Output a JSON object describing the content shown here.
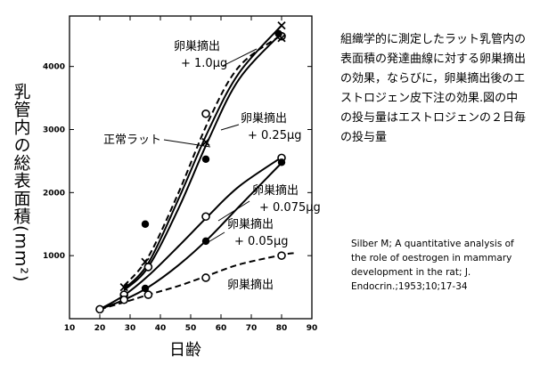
{
  "description": "組織学的に測定したラット乳管内の表面積の発達曲線に対する卵巣摘出の効果，ならびに，卵巣摘出後のエストロジェン皮下注の効果.図の中の投与量はエストロジェンの２日毎の投与量",
  "citation": "Silber M; A quantitative analysis of the role of oestrogen in mammary development in the rat; J. Endocrin.;1953;10;17-34",
  "chart_data": {
    "type": "line",
    "xlabel": "日齢",
    "ylabel": "乳管内の総表面積(mm²)",
    "xlim": [
      10,
      90
    ],
    "ylim": [
      0,
      4800
    ],
    "xticks": [
      10,
      20,
      30,
      40,
      50,
      60,
      70,
      80,
      90
    ],
    "yticks": [
      1000,
      2000,
      3000,
      4000
    ],
    "series": [
      {
        "name": "正常ラット",
        "label_lines": [
          "正常ラット"
        ],
        "style": "solid",
        "points": [
          {
            "x": 28,
            "y": 500,
            "m": "x"
          },
          {
            "x": 35,
            "y": 900,
            "m": "x"
          },
          {
            "x": 55,
            "y": 2800,
            "m": "x"
          },
          {
            "x": 80,
            "y": 4650,
            "m": "x"
          }
        ],
        "curve": [
          {
            "x": 28,
            "y": 470
          },
          {
            "x": 36,
            "y": 880
          },
          {
            "x": 46,
            "y": 1900
          },
          {
            "x": 56,
            "y": 3000
          },
          {
            "x": 66,
            "y": 3900
          },
          {
            "x": 80,
            "y": 4650
          }
        ]
      },
      {
        "name": "卵巣摘出 + 1.0μg",
        "label_lines": [
          "卵巣摘出",
          "+ 1.0μg"
        ],
        "style": "dashed",
        "points": [
          {
            "x": 36,
            "y": 820,
            "m": "o"
          },
          {
            "x": 80,
            "y": 4480,
            "m": "o"
          },
          {
            "x": 80,
            "y": 4450,
            "m": "x"
          }
        ],
        "curve": [
          {
            "x": 28,
            "y": 520
          },
          {
            "x": 36,
            "y": 980
          },
          {
            "x": 46,
            "y": 2000
          },
          {
            "x": 56,
            "y": 3150
          },
          {
            "x": 66,
            "y": 4000
          },
          {
            "x": 80,
            "y": 4500
          }
        ]
      },
      {
        "name": "卵巣摘出 + 0.25μg",
        "label_lines": [
          "卵巣摘出",
          "+ 0.25μg"
        ],
        "style": "solid",
        "points": [
          {
            "x": 55,
            "y": 3250,
            "m": "o"
          },
          {
            "x": 55,
            "y": 2530,
            "m": "dot"
          },
          {
            "x": 79,
            "y": 4520,
            "m": "dot"
          }
        ],
        "curve": [
          {
            "x": 28,
            "y": 450
          },
          {
            "x": 36,
            "y": 820
          },
          {
            "x": 46,
            "y": 1750
          },
          {
            "x": 56,
            "y": 2850
          },
          {
            "x": 66,
            "y": 3800
          },
          {
            "x": 80,
            "y": 4530
          }
        ]
      },
      {
        "name": "卵巣摘出 + 0.075μg",
        "label_lines": [
          "卵巣摘出",
          "+ 0.075μg"
        ],
        "style": "solid",
        "points": [
          {
            "x": 20,
            "y": 150,
            "m": "dot"
          },
          {
            "x": 28,
            "y": 380,
            "m": "o"
          },
          {
            "x": 35,
            "y": 1500,
            "m": "dot"
          },
          {
            "x": 55,
            "y": 1620,
            "m": "o"
          },
          {
            "x": 80,
            "y": 2550,
            "m": "o"
          }
        ],
        "curve": [
          {
            "x": 20,
            "y": 150
          },
          {
            "x": 28,
            "y": 370
          },
          {
            "x": 36,
            "y": 680
          },
          {
            "x": 46,
            "y": 1150
          },
          {
            "x": 56,
            "y": 1640
          },
          {
            "x": 66,
            "y": 2100
          },
          {
            "x": 80,
            "y": 2560
          }
        ]
      },
      {
        "name": "卵巣摘出 + 0.05μg",
        "label_lines": [
          "卵巣摘出",
          "+ 0.05μg"
        ],
        "style": "solid",
        "points": [
          {
            "x": 28,
            "y": 320,
            "m": "x"
          },
          {
            "x": 35,
            "y": 480,
            "m": "dot"
          },
          {
            "x": 55,
            "y": 1230,
            "m": "dot"
          },
          {
            "x": 80,
            "y": 2480,
            "m": "dot"
          }
        ],
        "curve": [
          {
            "x": 20,
            "y": 150
          },
          {
            "x": 28,
            "y": 300
          },
          {
            "x": 36,
            "y": 500
          },
          {
            "x": 46,
            "y": 850
          },
          {
            "x": 56,
            "y": 1280
          },
          {
            "x": 66,
            "y": 1780
          },
          {
            "x": 80,
            "y": 2470
          }
        ]
      },
      {
        "name": "卵巣摘出",
        "label_lines": [
          "卵巣摘出"
        ],
        "style": "dashed",
        "points": [
          {
            "x": 20,
            "y": 150,
            "m": "o"
          },
          {
            "x": 28,
            "y": 300,
            "m": "o"
          },
          {
            "x": 36,
            "y": 380,
            "m": "o"
          },
          {
            "x": 55,
            "y": 650,
            "m": "o"
          },
          {
            "x": 80,
            "y": 1000,
            "m": "o"
          }
        ],
        "curve": [
          {
            "x": 20,
            "y": 150
          },
          {
            "x": 28,
            "y": 260
          },
          {
            "x": 36,
            "y": 380
          },
          {
            "x": 46,
            "y": 520
          },
          {
            "x": 56,
            "y": 690
          },
          {
            "x": 66,
            "y": 860
          },
          {
            "x": 80,
            "y": 1010
          },
          {
            "x": 84,
            "y": 1040
          }
        ]
      }
    ]
  }
}
